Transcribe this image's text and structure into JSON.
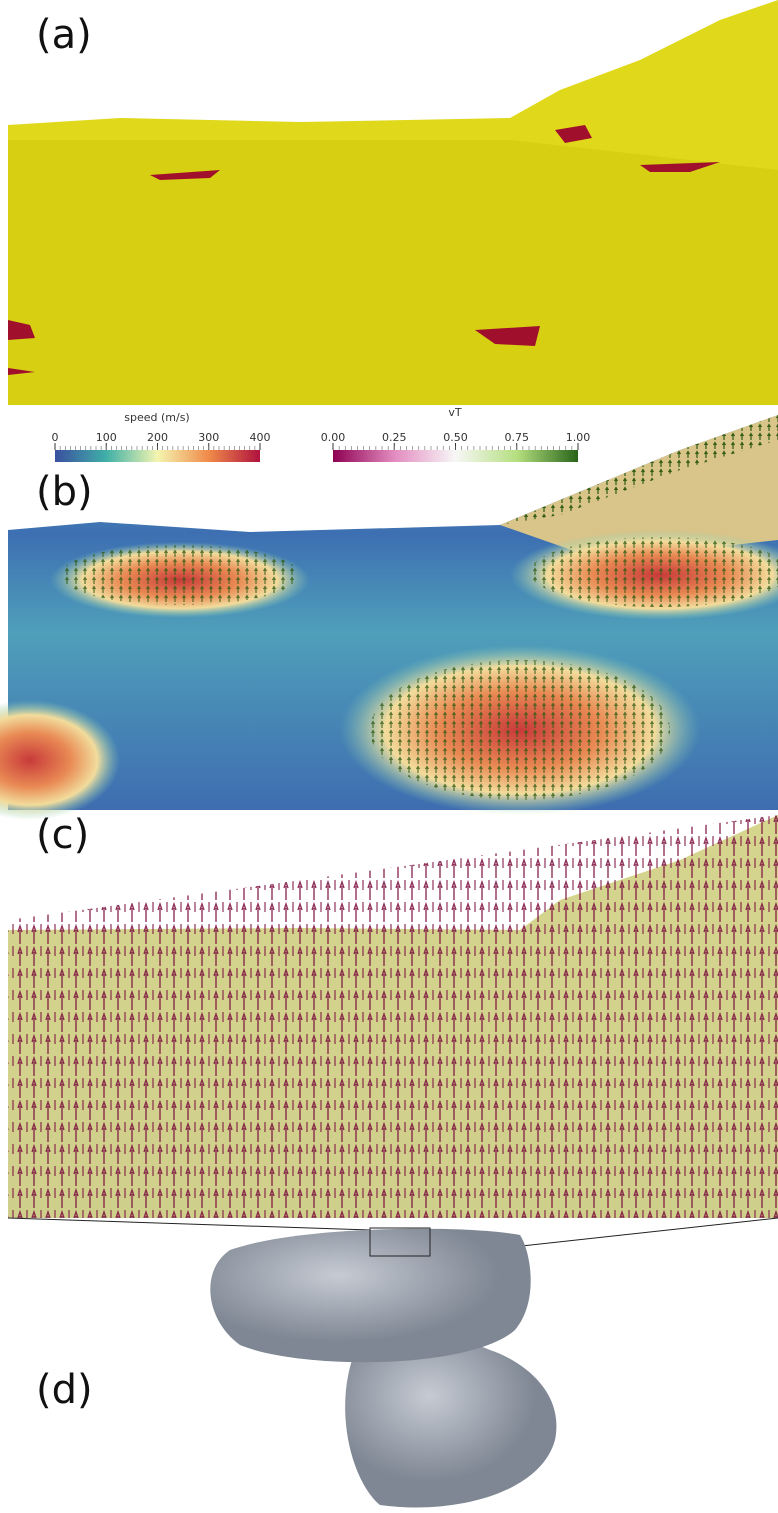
{
  "panels": [
    {
      "label": "(a)"
    },
    {
      "label": "(b)"
    },
    {
      "label": "(c)"
    },
    {
      "label": "(d)"
    }
  ],
  "colorbars": [
    {
      "title": "speed (m/s)",
      "range": [
        0,
        400
      ],
      "ticks": [
        0,
        100,
        200,
        300,
        400
      ]
    },
    {
      "title": "vT",
      "range": [
        0,
        1
      ],
      "ticks": [
        {
          "value": 0,
          "label": "0.00"
        },
        {
          "value": 0.25,
          "label": "0.25"
        },
        {
          "value": 0.5,
          "label": "0.50"
        },
        {
          "value": 0.75,
          "label": "0.75"
        },
        {
          "value": 1,
          "label": "1.00"
        }
      ]
    }
  ]
}
